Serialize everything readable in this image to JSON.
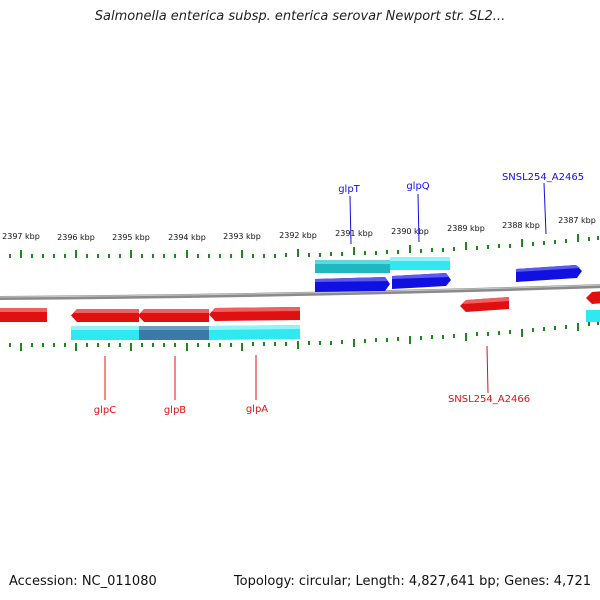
{
  "header": {
    "title": "Salmonella enterica subsp. enterica serovar Newport str. SL2..."
  },
  "footer": {
    "accession": "Accession: NC_011080",
    "summary": "Topology: circular; Length: 4,827,641 bp; Genes: 4,721"
  },
  "colors": {
    "forward": "#1010e0",
    "reverse": "#e01010",
    "cds": "#30e8f0",
    "cds_dark": "#3a7aa8",
    "cds_teal": "#20b8c0",
    "tick": "#1a8a1a",
    "backbone": "#8a8a8a"
  },
  "ticks": [
    "2397 kbp",
    "2396 kbp",
    "2395 kbp",
    "2394 kbp",
    "2393 kbp",
    "2392 kbp",
    "2391 kbp",
    "2390 kbp",
    "2389 kbp",
    "2388 kbp",
    "2387 kbp"
  ],
  "genes_top": [
    "glpT",
    "glpQ",
    "SNSL254_A2465"
  ],
  "genes_bottom": [
    "glpC",
    "glpB",
    "glpA",
    "SNSL254_A2466"
  ]
}
